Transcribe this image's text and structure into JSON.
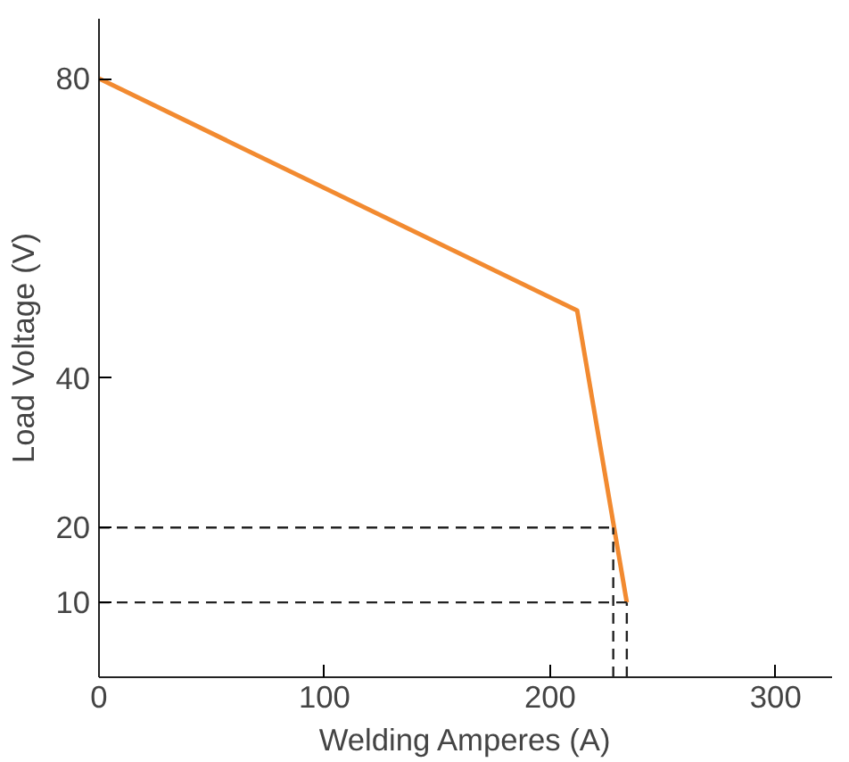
{
  "chart_data": {
    "type": "line",
    "xlabel": "Welding Amperes (A)",
    "ylabel": "Load Voltage (V)",
    "xlim": [
      0,
      325
    ],
    "ylim": [
      0,
      88
    ],
    "xticks": [
      0,
      100,
      200,
      300
    ],
    "yticks": [
      10,
      20,
      40,
      80
    ],
    "grid": false,
    "series": [
      {
        "color": "#f28a30",
        "x": [
          0,
          212,
          234
        ],
        "values": [
          80,
          49,
          10
        ],
        "line_style": "solid"
      },
      {
        "color": "#222222",
        "x": [
          0,
          229
        ],
        "values": [
          20,
          20
        ],
        "line_style": "dashed"
      },
      {
        "color": "#222222",
        "x": [
          0,
          234
        ],
        "values": [
          10,
          10
        ],
        "line_style": "dashed"
      },
      {
        "color": "#222222",
        "x": [
          228,
          228
        ],
        "values": [
          0,
          20
        ],
        "line_style": "dashed"
      },
      {
        "color": "#222222",
        "x": [
          234,
          234
        ],
        "values": [
          0,
          10
        ],
        "line_style": "dashed"
      }
    ]
  }
}
